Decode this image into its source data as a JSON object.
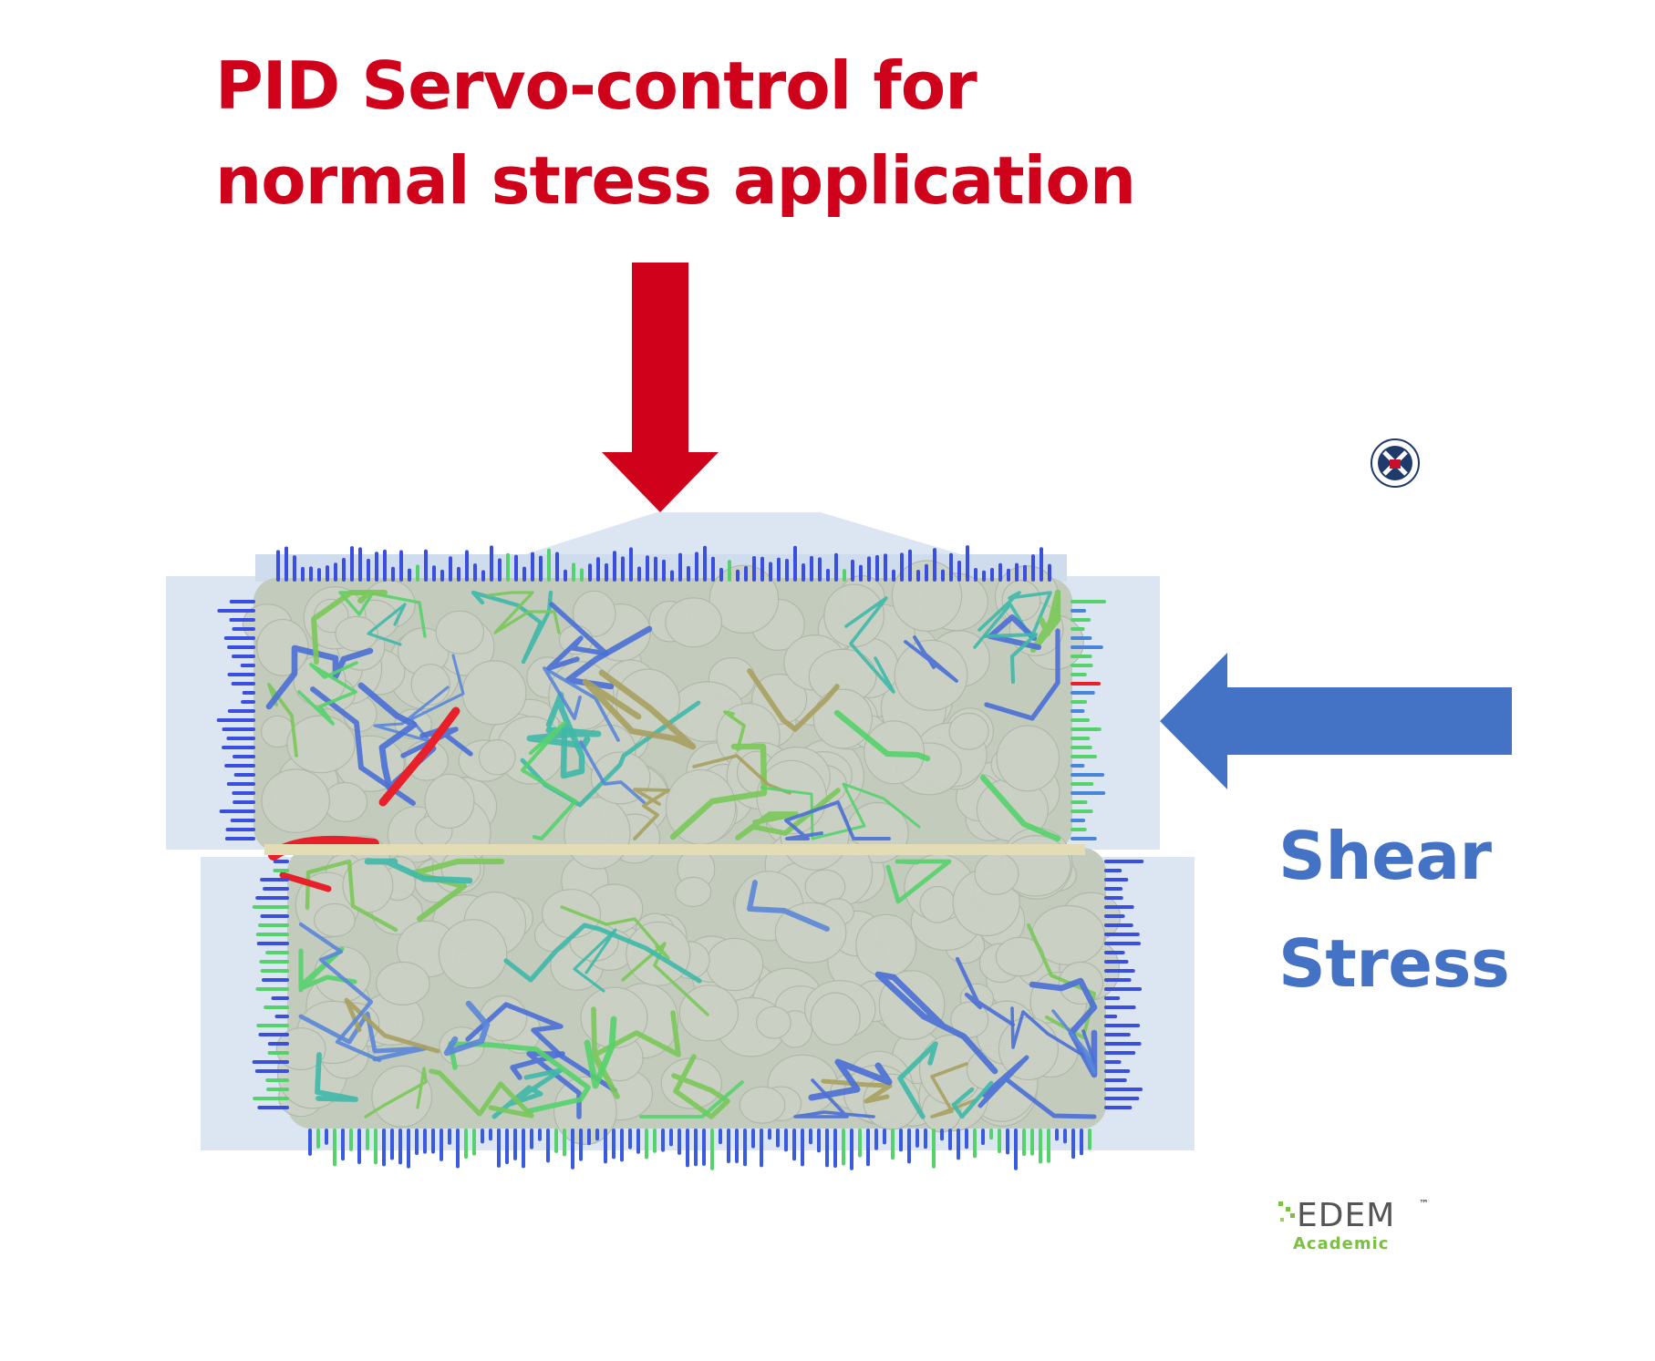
{
  "title": {
    "line1": "PID Servo-control for",
    "line2": "normal stress application"
  },
  "shear": {
    "line1": "Shear",
    "line2": "Stress"
  },
  "logo": {
    "word": "EDEM",
    "tm": "™",
    "sub": "Academic"
  },
  "colors": {
    "title": "#d0021b",
    "shear": "#4472c4",
    "normal_arrow": "#d0021b",
    "shear_arrow": "#4472c4",
    "box_fill": "#dce6f2",
    "particle_fill": "#c3cbbd",
    "logo_green": "#7ac143",
    "logo_grey": "#555555"
  },
  "icons": {
    "crest": "university-crest-icon",
    "logo": "edem-academic-logo-icon"
  }
}
